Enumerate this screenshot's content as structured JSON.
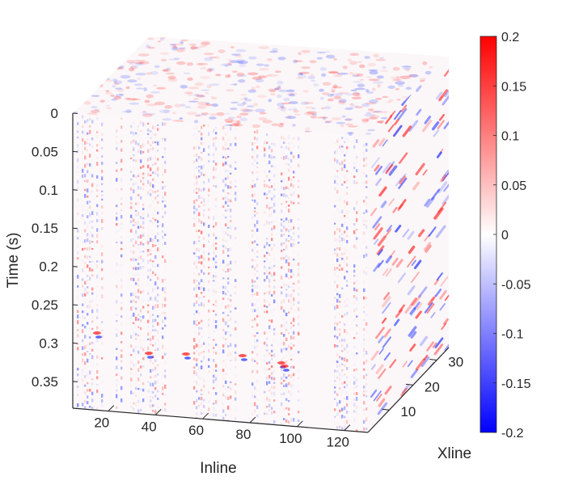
{
  "chart_data": {
    "type": "heatmap",
    "subtype": "3d-seismic-cube",
    "axes": {
      "inline": {
        "label": "Inline",
        "ticks": [
          20,
          40,
          60,
          80,
          100,
          120
        ],
        "range": [
          5,
          130
        ]
      },
      "xline": {
        "label": "Xline",
        "ticks": [
          10,
          20,
          30
        ],
        "range": [
          1,
          35
        ]
      },
      "time": {
        "label": "Time (s)",
        "ticks": [
          "0",
          "0.05",
          "0.1",
          "0.15",
          "0.2",
          "0.25",
          "0.3",
          "0.35"
        ],
        "range": [
          0,
          0.385
        ],
        "reversed": true
      }
    },
    "colorbar": {
      "ticks": [
        "0.2",
        "0.15",
        "0.1",
        "0.05",
        "0",
        "-0.05",
        "-0.1",
        "-0.15",
        "-0.2"
      ],
      "range": [
        -0.2,
        0.2
      ],
      "colors": {
        "low": "#0000ff",
        "mid": "#ffffff",
        "high": "#ff0000"
      }
    },
    "grid": false,
    "faces": [
      "front",
      "top",
      "side"
    ]
  }
}
